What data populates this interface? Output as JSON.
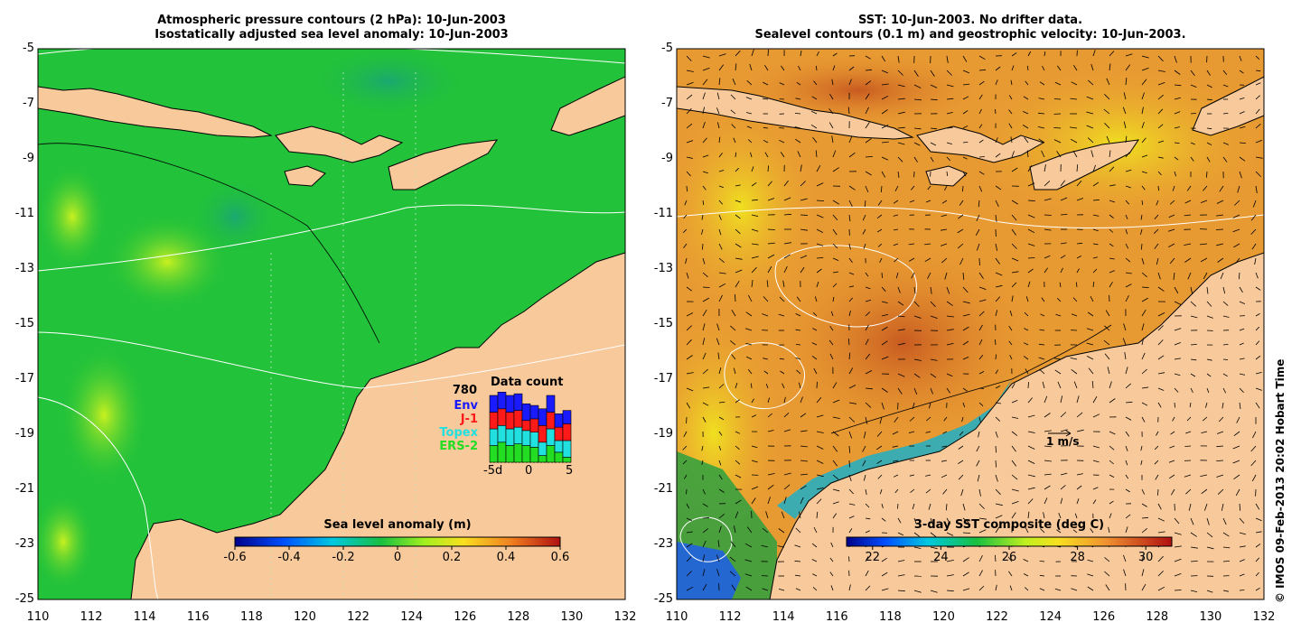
{
  "left_panel": {
    "title_line1": "Atmospheric pressure contours (2 hPa): 10-Jun-2003",
    "title_line2": "Isostatically adjusted sea level anomaly: 10-Jun-2003",
    "colorbar_label": "Sea level anomaly (m)",
    "colorbar_ticks": [
      "-0.6",
      "-0.4",
      "-0.2",
      "0",
      "0.2",
      "0.4",
      "0.6"
    ],
    "colors": {
      "ocean": "#22c23a",
      "land": "#f8c99a",
      "contour": "#ffffff",
      "coast": "#000000"
    }
  },
  "right_panel": {
    "title_line1": "SST: 10-Jun-2003. No drifter data.",
    "title_line2": "Sealevel contours (0.1 m) and geostrophic velocity: 10-Jun-2003.",
    "colorbar_label": "3-day SST composite (deg C)",
    "colorbar_ticks": [
      "22",
      "24",
      "26",
      "28",
      "30"
    ],
    "scale_label": "1 m/s",
    "colors": {
      "ocean": "#e89a32",
      "land": "#f8c99a",
      "contour": "#ffffff",
      "coast": "#000000"
    }
  },
  "axes": {
    "y_ticks": [
      "-5",
      "-7",
      "-9",
      "-11",
      "-13",
      "-15",
      "-17",
      "-19",
      "-21",
      "-23",
      "-25"
    ],
    "x_ticks": [
      "110",
      "112",
      "114",
      "116",
      "118",
      "120",
      "122",
      "124",
      "126",
      "128",
      "130",
      "132"
    ]
  },
  "data_count": {
    "title": "Data count",
    "total": "780",
    "missions": [
      {
        "name": "Env",
        "color": "#1a1aff"
      },
      {
        "name": "J-1",
        "color": "#ff1a1a"
      },
      {
        "name": "Topex",
        "color": "#22e0e0"
      },
      {
        "name": "ERS-2",
        "color": "#22dd22"
      }
    ],
    "x_labels": [
      "-5d",
      "0",
      "5"
    ],
    "bars": [
      [
        1,
        1,
        1,
        1
      ],
      [
        1,
        1,
        1,
        1.2
      ],
      [
        1,
        1,
        1,
        1
      ],
      [
        1,
        1,
        1,
        1.1
      ],
      [
        1,
        0.6,
        0.9,
        1
      ],
      [
        0.8,
        0.8,
        0.9,
        0.9
      ],
      [
        1,
        1,
        0.8,
        0.4
      ],
      [
        1,
        1,
        1,
        1
      ],
      [
        0.8,
        0.8,
        0.7,
        0.6
      ],
      [
        0.8,
        1,
        1,
        0.3
      ]
    ]
  },
  "credit": "© IMOS 09-Feb-2013 20:02 Hobart Time"
}
